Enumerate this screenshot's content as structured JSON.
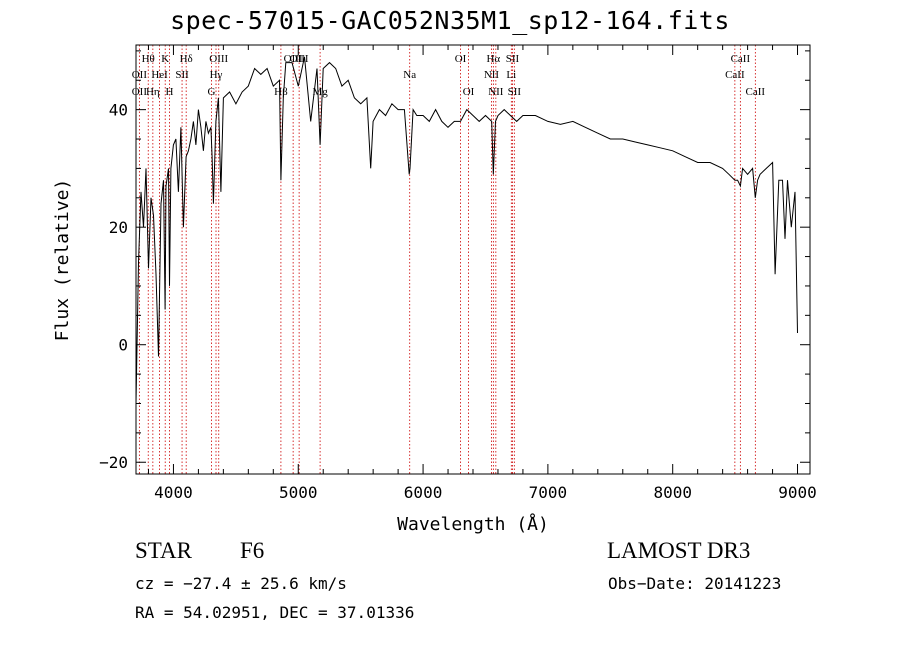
{
  "chart_data": {
    "type": "line",
    "title": "spec-57015-GAC052N35M1_sp12-164.fits",
    "xlabel": "Wavelength (Å)",
    "ylabel": "Flux (relative)",
    "xlim": [
      3700,
      9100
    ],
    "ylim": [
      -22,
      51
    ],
    "x_ticks": [
      4000,
      5000,
      6000,
      7000,
      8000,
      9000
    ],
    "x_tick_labels": [
      "4000",
      "5000",
      "6000",
      "7000",
      "8000",
      "9000"
    ],
    "y_ticks": [
      -20,
      0,
      20,
      40
    ],
    "y_tick_labels": [
      "−20",
      "0",
      "20",
      "40"
    ],
    "series": [
      {
        "name": "spectrum",
        "x": [
          3700,
          3720,
          3740,
          3760,
          3780,
          3800,
          3820,
          3840,
          3860,
          3880,
          3900,
          3920,
          3933,
          3940,
          3960,
          3968,
          3980,
          4000,
          4020,
          4040,
          4060,
          4080,
          4101,
          4120,
          4140,
          4160,
          4180,
          4200,
          4220,
          4240,
          4260,
          4280,
          4300,
          4310,
          4320,
          4340,
          4360,
          4380,
          4400,
          4450,
          4500,
          4550,
          4600,
          4650,
          4700,
          4750,
          4800,
          4850,
          4861,
          4880,
          4900,
          4950,
          5000,
          5050,
          5100,
          5150,
          5175,
          5200,
          5250,
          5300,
          5350,
          5400,
          5450,
          5500,
          5550,
          5580,
          5600,
          5650,
          5700,
          5750,
          5800,
          5850,
          5889,
          5895,
          5920,
          5950,
          6000,
          6050,
          6100,
          6150,
          6200,
          6250,
          6300,
          6350,
          6400,
          6450,
          6500,
          6550,
          6563,
          6580,
          6600,
          6650,
          6700,
          6750,
          6800,
          6850,
          6900,
          7000,
          7100,
          7200,
          7300,
          7400,
          7500,
          7600,
          7700,
          7800,
          7900,
          8000,
          8100,
          8200,
          8300,
          8400,
          8450,
          8498,
          8520,
          8542,
          8560,
          8600,
          8640,
          8662,
          8680,
          8700,
          8750,
          8800,
          8820,
          8850,
          8880,
          8900,
          8920,
          8950,
          8980,
          9000
        ],
        "y": [
          -10,
          14,
          26,
          20,
          30,
          13,
          25,
          22,
          12,
          -2,
          24,
          28,
          6,
          27,
          30,
          10,
          30,
          34,
          35,
          26,
          37,
          20,
          32,
          33,
          35,
          38,
          34,
          40,
          37,
          33,
          38,
          36,
          37,
          32,
          24,
          38,
          42,
          26,
          42,
          43,
          41,
          43,
          44,
          47,
          46,
          47,
          44,
          45,
          28,
          42,
          48,
          48,
          44,
          49,
          38,
          47,
          34,
          47,
          48,
          47,
          44,
          45,
          42,
          41,
          42,
          30,
          38,
          40,
          39,
          41,
          40,
          40,
          29,
          30,
          40,
          39,
          39,
          38,
          40,
          38,
          37,
          38,
          38,
          40,
          39,
          38,
          39,
          38,
          29,
          38,
          39,
          40,
          39,
          38,
          39,
          39,
          39,
          38,
          37.5,
          38,
          37,
          36,
          35,
          35,
          34.5,
          34,
          33.5,
          33,
          32,
          31,
          31,
          30,
          29,
          28,
          28,
          27,
          30,
          29,
          30,
          25,
          28,
          29,
          30,
          31,
          12,
          28,
          28,
          18,
          28,
          20,
          26,
          2
        ]
      }
    ],
    "lines": [
      {
        "name": "Hθ",
        "x": 3798,
        "row": 1
      },
      {
        "name": "OII",
        "x": 3727,
        "row": 2
      },
      {
        "name": "OII",
        "x": 3727,
        "row": 3
      },
      {
        "name": "Hη",
        "x": 3835,
        "row": 3
      },
      {
        "name": "HeI",
        "x": 3889,
        "row": 2
      },
      {
        "name": "K",
        "x": 3934,
        "row": 1
      },
      {
        "name": "H",
        "x": 3968,
        "row": 3
      },
      {
        "name": "Hδ",
        "x": 4102,
        "row": 1
      },
      {
        "name": "SII",
        "x": 4069,
        "row": 2
      },
      {
        "name": "OIII",
        "x": 4363,
        "row": 1
      },
      {
        "name": "Hγ",
        "x": 4341,
        "row": 2
      },
      {
        "name": "G",
        "x": 4305,
        "row": 3
      },
      {
        "name": "OIII",
        "x": 4959,
        "row": 1
      },
      {
        "name": "OIII",
        "x": 5007,
        "row": 1
      },
      {
        "name": "Hβ",
        "x": 4861,
        "row": 3
      },
      {
        "name": "Mg",
        "x": 5175,
        "row": 3
      },
      {
        "name": "Na",
        "x": 5893,
        "row": 2
      },
      {
        "name": "OI",
        "x": 6300,
        "row": 1
      },
      {
        "name": "OI",
        "x": 6364,
        "row": 3
      },
      {
        "name": "Hα",
        "x": 6563,
        "row": 1
      },
      {
        "name": "NII",
        "x": 6548,
        "row": 2
      },
      {
        "name": "NII",
        "x": 6583,
        "row": 3
      },
      {
        "name": "SII",
        "x": 6716,
        "row": 1
      },
      {
        "name": "Li",
        "x": 6707,
        "row": 2
      },
      {
        "name": "SII",
        "x": 6731,
        "row": 3
      },
      {
        "name": "CaII",
        "x": 8542,
        "row": 1
      },
      {
        "name": "CaII",
        "x": 8498,
        "row": 2
      },
      {
        "name": "CaII",
        "x": 8662,
        "row": 3
      }
    ],
    "line_color": "#cc0000",
    "spectrum_color": "#000000",
    "grid": false
  },
  "annotations": {
    "object_class": "STAR",
    "subclass": "F6",
    "survey": "LAMOST DR3",
    "cz": "cz = −27.4 ± 25.6 km/s",
    "obs_date": "Obs−Date: 20141223",
    "coords": "RA =  54.02951, DEC =  37.01336"
  }
}
